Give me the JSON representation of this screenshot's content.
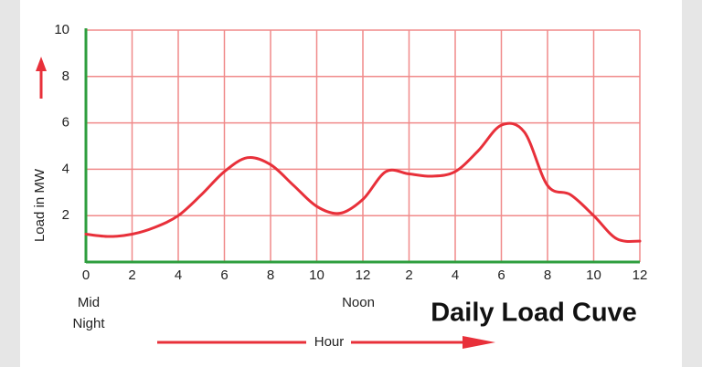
{
  "chart_data": {
    "type": "line",
    "title": "Daily Load Cuve",
    "x_label": "Hour",
    "y_label": "Load in MW",
    "annotations": [
      "Mid",
      "Night",
      "Noon"
    ],
    "x": [
      0,
      1,
      2,
      3,
      4,
      5,
      6,
      7,
      8,
      9,
      10,
      11,
      12,
      13,
      14,
      15,
      16,
      17,
      18,
      19,
      20,
      21,
      22,
      23,
      24
    ],
    "values": [
      1.2,
      1.1,
      1.2,
      1.5,
      2.0,
      2.9,
      3.9,
      4.5,
      4.2,
      3.3,
      2.4,
      2.1,
      2.7,
      3.9,
      3.8,
      3.7,
      3.9,
      4.8,
      5.9,
      5.6,
      3.3,
      2.9,
      2.0,
      1.0,
      0.9
    ],
    "color": "#e8303a",
    "xlim": [
      0,
      24
    ],
    "xticks": [
      0,
      {
        "value": 2,
        "label": "2"
      },
      4,
      6,
      8,
      10,
      12,
      {
        "value": 14,
        "label": "2"
      },
      {
        "value": 16,
        "label": "4"
      },
      {
        "value": 18,
        "label": "6"
      },
      {
        "value": 20,
        "label": "8"
      },
      {
        "value": 22,
        "label": "10"
      },
      {
        "value": 24,
        "label": "12"
      }
    ],
    "ylim": [
      0,
      10
    ],
    "yticks": [
      2,
      4,
      6,
      8,
      10
    ],
    "grid": true
  }
}
